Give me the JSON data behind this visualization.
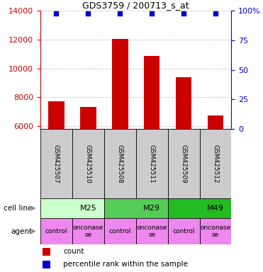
{
  "title": "GDS3759 / 200713_s_at",
  "samples": [
    "GSM425507",
    "GSM425510",
    "GSM425508",
    "GSM425511",
    "GSM425509",
    "GSM425512"
  ],
  "counts": [
    7700,
    7350,
    12050,
    10850,
    9400,
    6750
  ],
  "percentile_ranks": [
    98,
    98,
    98,
    98,
    98,
    98
  ],
  "bar_color": "#cc0000",
  "dot_color": "#0000cc",
  "ylim_left": [
    5800,
    14000
  ],
  "ylim_right": [
    0,
    100
  ],
  "yticks_left": [
    6000,
    8000,
    10000,
    12000,
    14000
  ],
  "yticks_right": [
    0,
    25,
    50,
    75,
    100
  ],
  "cell_lines": [
    {
      "label": "M25",
      "span": [
        0,
        2
      ],
      "color": "#ccffcc"
    },
    {
      "label": "M29",
      "span": [
        2,
        4
      ],
      "color": "#55cc55"
    },
    {
      "label": "M49",
      "span": [
        4,
        6
      ],
      "color": "#22bb22"
    }
  ],
  "agents": [
    "control",
    "onconase\nse",
    "control",
    "onconase\nse",
    "control",
    "onconase\nse"
  ],
  "agent_color": "#ee88ee",
  "sample_box_color": "#cccccc",
  "grid_color": "#aaaaaa",
  "left_axis_color": "#cc0000",
  "right_axis_color": "#0000cc",
  "legend_count_color": "#cc0000",
  "legend_pct_color": "#0000cc",
  "fig_w": 3.71,
  "fig_h": 3.84
}
